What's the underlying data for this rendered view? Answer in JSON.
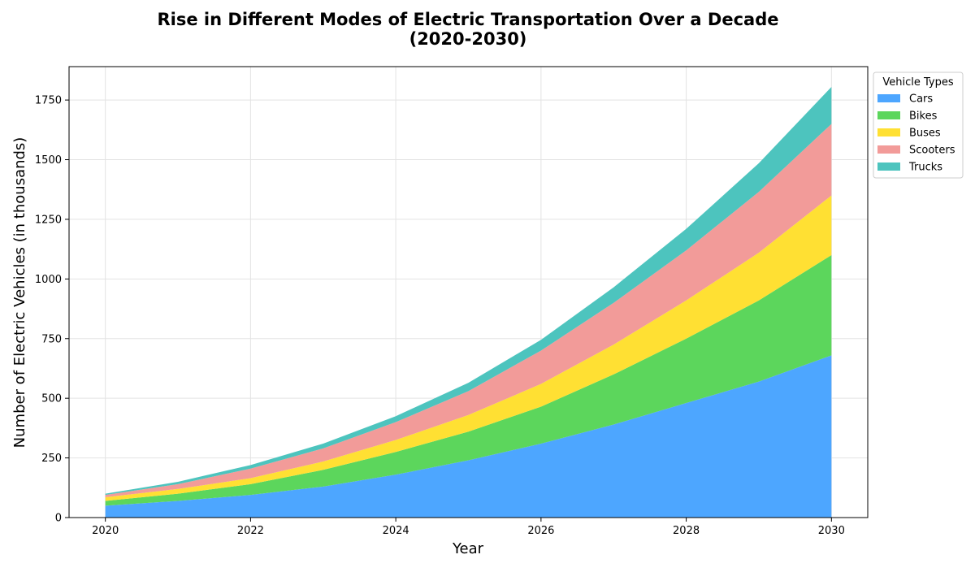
{
  "chart_data": {
    "type": "area",
    "stacked": true,
    "title_line1": "Rise in Different Modes of Electric Transportation Over a Decade",
    "title_line2": "(2020-2030)",
    "xlabel": "Year",
    "ylabel": "Number of Electric Vehicles (in thousands)",
    "x": [
      2020,
      2021,
      2022,
      2023,
      2024,
      2025,
      2026,
      2027,
      2028,
      2029,
      2030
    ],
    "xlim": [
      2019.5,
      2030.5
    ],
    "ylim": [
      0,
      1890
    ],
    "xticks": [
      2020,
      2022,
      2024,
      2026,
      2028,
      2030
    ],
    "xtick_labels": [
      "2020",
      "2022",
      "2024",
      "2026",
      "2028",
      "2030"
    ],
    "yticks": [
      0,
      250,
      500,
      750,
      1000,
      1250,
      1500,
      1750
    ],
    "ytick_labels": [
      "0",
      "250",
      "500",
      "750",
      "1000",
      "1250",
      "1500",
      "1750"
    ],
    "grid": true,
    "legend": {
      "title": "Vehicle Types",
      "placement": "outside-top-right"
    },
    "series": [
      {
        "name": "Cars",
        "color": "#4da6ff",
        "values": [
          50,
          70,
          95,
          130,
          180,
          240,
          310,
          390,
          480,
          570,
          680
        ]
      },
      {
        "name": "Bikes",
        "color": "#5cd65c",
        "values": [
          20,
          30,
          45,
          70,
          95,
          120,
          155,
          210,
          270,
          340,
          420
        ]
      },
      {
        "name": "Buses",
        "color": "#ffe033",
        "values": [
          15,
          20,
          25,
          35,
          50,
          70,
          95,
          125,
          160,
          200,
          250
        ]
      },
      {
        "name": "Scooters",
        "color": "#f29b99",
        "values": [
          10,
          20,
          40,
          55,
          75,
          100,
          140,
          175,
          210,
          255,
          300
        ]
      },
      {
        "name": "Trucks",
        "color": "#4dc4be",
        "values": [
          5,
          10,
          15,
          20,
          25,
          35,
          45,
          65,
          90,
          120,
          155
        ]
      }
    ]
  }
}
